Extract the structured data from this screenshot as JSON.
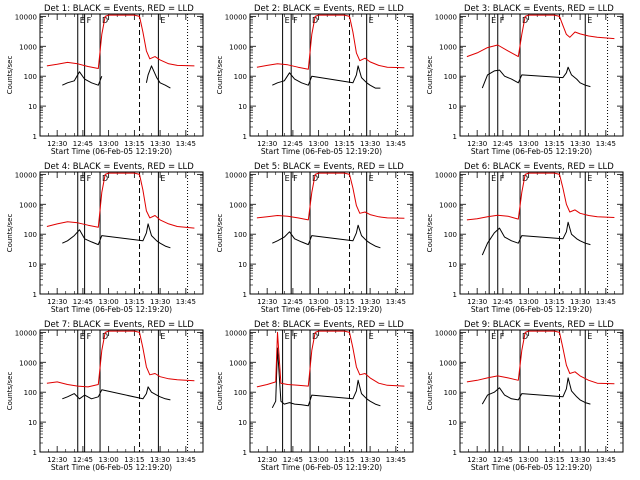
{
  "ylabel": "Counts/sec",
  "y_ticks": [
    "1",
    "10",
    "100",
    "1000",
    "10000"
  ],
  "x_ticks": [
    "12:30",
    "12:45",
    "13:00",
    "13:15",
    "13:30",
    "13:45"
  ],
  "start_time_label": "Start Time (06-Feb-05 12:19:20)",
  "colors": {
    "events": "#000000",
    "lld": "#e00000"
  },
  "chart_data": [
    {
      "type": "line",
      "title": "Det 1: BLACK = Events, RED = LLD",
      "xlabel": "Start Time (06-Feb-05 12:19:20)",
      "ylabel": "Counts/sec",
      "ylog": true,
      "ylim": [
        1,
        12000
      ],
      "flag_letters": [
        "E",
        "F",
        "D",
        "E"
      ],
      "solid_lines": [
        "12:42",
        "12:46",
        "12:55",
        "13:29"
      ],
      "dashed_lines": [
        "13:18"
      ],
      "dotted_lines": [
        "13:46"
      ],
      "series": [
        {
          "name": "BLACK",
          "x": [
            "12:33",
            "12:36",
            "12:40",
            "12:43",
            "12:46",
            "12:50",
            "12:54",
            "12:56",
            "13:18",
            "13:20",
            "13:22",
            "13:23",
            "13:25",
            "13:28",
            "13:30",
            "13:33",
            "13:36"
          ],
          "values": [
            50,
            60,
            70,
            140,
            80,
            60,
            50,
            100,
            null,
            null,
            60,
            110,
            220,
            90,
            60,
            50,
            40
          ]
        },
        {
          "name": "RED",
          "x": [
            "12:24",
            "12:30",
            "12:36",
            "12:42",
            "12:48",
            "12:54",
            "12:56",
            "12:58",
            "13:00",
            "13:10",
            "13:15",
            "13:18",
            "13:20",
            "13:22",
            "13:24",
            "13:27",
            "13:30",
            "13:35",
            "13:40",
            "13:50"
          ],
          "values": [
            220,
            250,
            290,
            260,
            210,
            180,
            2500,
            10000,
            11000,
            11000,
            11000,
            10000,
            3000,
            700,
            380,
            450,
            350,
            260,
            230,
            220
          ]
        }
      ]
    },
    {
      "type": "line",
      "title": "Det 2: BLACK = Events, RED = LLD",
      "xlabel": "Start Time (06-Feb-05 12:19:20)",
      "ylabel": "Counts/sec",
      "ylog": true,
      "ylim": [
        1,
        12000
      ],
      "flag_letters": [
        "E",
        "F",
        "D",
        "E"
      ],
      "solid_lines": [
        "12:39",
        "12:44",
        "12:55",
        "13:28"
      ],
      "dashed_lines": [
        "13:18"
      ],
      "dotted_lines": [
        "13:46"
      ],
      "series": [
        {
          "name": "BLACK",
          "x": [
            "12:33",
            "12:36",
            "12:40",
            "12:43",
            "12:46",
            "12:50",
            "12:54",
            "12:56",
            "13:20",
            "13:22",
            "13:23",
            "13:25",
            "13:28",
            "13:30",
            "13:33",
            "13:36"
          ],
          "values": [
            50,
            60,
            70,
            130,
            80,
            60,
            50,
            100,
            60,
            110,
            220,
            90,
            60,
            50,
            40,
            40
          ]
        },
        {
          "name": "RED",
          "x": [
            "12:24",
            "12:30",
            "12:36",
            "12:42",
            "12:48",
            "12:54",
            "12:56",
            "12:58",
            "13:00",
            "13:10",
            "13:15",
            "13:18",
            "13:20",
            "13:22",
            "13:24",
            "13:27",
            "13:30",
            "13:35",
            "13:40",
            "13:50"
          ],
          "values": [
            200,
            230,
            260,
            240,
            200,
            170,
            2500,
            10000,
            11000,
            11000,
            11000,
            10000,
            3000,
            600,
            330,
            400,
            300,
            230,
            200,
            190
          ]
        }
      ]
    },
    {
      "type": "line",
      "title": "Det 3: BLACK = Events, RED = LLD",
      "xlabel": "Start Time (06-Feb-05 12:19:20)",
      "ylabel": "Counts/sec",
      "ylog": true,
      "ylim": [
        1,
        12000
      ],
      "flag_letters": [
        "E",
        "F",
        "D",
        "E"
      ],
      "solid_lines": [
        "12:37",
        "12:42",
        "12:55",
        "13:33"
      ],
      "dashed_lines": [
        "13:18"
      ],
      "dotted_lines": [
        "13:46"
      ],
      "series": [
        {
          "name": "BLACK",
          "x": [
            "12:33",
            "12:36",
            "12:40",
            "12:43",
            "12:46",
            "12:50",
            "12:54",
            "12:56",
            "13:20",
            "13:22",
            "13:23",
            "13:25",
            "13:28",
            "13:30",
            "13:33",
            "13:36"
          ],
          "values": [
            40,
            110,
            150,
            160,
            100,
            80,
            60,
            110,
            90,
            130,
            200,
            110,
            80,
            60,
            50,
            45
          ]
        },
        {
          "name": "RED",
          "x": [
            "12:24",
            "12:30",
            "12:36",
            "12:42",
            "12:48",
            "12:54",
            "12:56",
            "12:58",
            "13:00",
            "13:10",
            "13:15",
            "13:18",
            "13:20",
            "13:22",
            "13:24",
            "13:27",
            "13:30",
            "13:35",
            "13:40",
            "13:50"
          ],
          "values": [
            450,
            600,
            900,
            1100,
            700,
            450,
            2500,
            10000,
            11000,
            11000,
            11000,
            10000,
            5000,
            2500,
            2000,
            3000,
            2600,
            2200,
            2000,
            1800
          ]
        }
      ]
    },
    {
      "type": "line",
      "title": "Det 4: BLACK = Events, RED = LLD",
      "xlabel": "Start Time (06-Feb-05 12:19:20)",
      "ylabel": "Counts/sec",
      "ylog": true,
      "ylim": [
        1,
        12000
      ],
      "flag_letters": [
        "E",
        "F",
        "D",
        "E"
      ],
      "solid_lines": [
        "12:42",
        "12:46",
        "12:55",
        "13:29"
      ],
      "dashed_lines": [
        "13:18"
      ],
      "dotted_lines": [
        "13:46"
      ],
      "series": [
        {
          "name": "BLACK",
          "x": [
            "12:33",
            "12:36",
            "12:40",
            "12:43",
            "12:46",
            "12:50",
            "12:54",
            "12:56",
            "13:20",
            "13:22",
            "13:23",
            "13:25",
            "13:28",
            "13:30",
            "13:33",
            "13:36"
          ],
          "values": [
            50,
            60,
            90,
            140,
            70,
            55,
            45,
            90,
            60,
            110,
            220,
            90,
            60,
            50,
            40,
            35
          ]
        },
        {
          "name": "RED",
          "x": [
            "12:24",
            "12:30",
            "12:36",
            "12:42",
            "12:48",
            "12:54",
            "12:56",
            "12:58",
            "13:00",
            "13:10",
            "13:15",
            "13:18",
            "13:20",
            "13:22",
            "13:24",
            "13:27",
            "13:30",
            "13:35",
            "13:40",
            "13:50"
          ],
          "values": [
            180,
            220,
            260,
            240,
            200,
            170,
            2500,
            10000,
            11000,
            11000,
            11000,
            10000,
            3000,
            600,
            350,
            420,
            300,
            220,
            180,
            160
          ]
        }
      ]
    },
    {
      "type": "line",
      "title": "Det 5: BLACK = Events, RED = LLD",
      "xlabel": "Start Time (06-Feb-05 12:19:20)",
      "ylabel": "Counts/sec",
      "ylog": true,
      "ylim": [
        1,
        12000
      ],
      "flag_letters": [
        "E",
        "F",
        "D",
        "E"
      ],
      "solid_lines": [
        "12:39",
        "12:44",
        "12:55",
        "13:28"
      ],
      "dashed_lines": [
        "13:18"
      ],
      "dotted_lines": [
        "13:46"
      ],
      "series": [
        {
          "name": "BLACK",
          "x": [
            "12:33",
            "12:36",
            "12:40",
            "12:43",
            "12:46",
            "12:50",
            "12:54",
            "12:56",
            "13:20",
            "13:22",
            "13:23",
            "13:25",
            "13:28",
            "13:30",
            "13:33",
            "13:36"
          ],
          "values": [
            50,
            60,
            80,
            120,
            70,
            55,
            45,
            90,
            60,
            110,
            200,
            90,
            60,
            50,
            40,
            35
          ]
        },
        {
          "name": "RED",
          "x": [
            "12:24",
            "12:30",
            "12:36",
            "12:42",
            "12:48",
            "12:54",
            "12:56",
            "12:58",
            "13:00",
            "13:10",
            "13:15",
            "13:18",
            "13:20",
            "13:22",
            "13:24",
            "13:27",
            "13:30",
            "13:35",
            "13:40",
            "13:50"
          ],
          "values": [
            350,
            380,
            420,
            400,
            350,
            300,
            2500,
            10000,
            11000,
            11000,
            11000,
            10000,
            3500,
            900,
            500,
            550,
            450,
            380,
            350,
            340
          ]
        }
      ]
    },
    {
      "type": "line",
      "title": "Det 6: BLACK = Events, RED = LLD",
      "xlabel": "Start Time (06-Feb-05 12:19:20)",
      "ylabel": "Counts/sec",
      "ylog": true,
      "ylim": [
        1,
        12000
      ],
      "flag_letters": [
        "E",
        "F",
        "D",
        "E"
      ],
      "solid_lines": [
        "12:37",
        "12:42",
        "12:55",
        "13:33"
      ],
      "dashed_lines": [
        "13:18"
      ],
      "dotted_lines": [
        "13:46"
      ],
      "series": [
        {
          "name": "BLACK",
          "x": [
            "12:33",
            "12:36",
            "12:40",
            "12:43",
            "12:46",
            "12:50",
            "12:54",
            "12:56",
            "13:20",
            "13:22",
            "13:23",
            "13:25",
            "13:28",
            "13:30",
            "13:33",
            "13:36"
          ],
          "values": [
            20,
            50,
            110,
            160,
            80,
            60,
            50,
            90,
            70,
            120,
            250,
            100,
            70,
            60,
            50,
            45
          ]
        },
        {
          "name": "RED",
          "x": [
            "12:24",
            "12:30",
            "12:36",
            "12:42",
            "12:48",
            "12:54",
            "12:56",
            "12:58",
            "13:00",
            "13:10",
            "13:15",
            "13:18",
            "13:20",
            "13:22",
            "13:24",
            "13:27",
            "13:30",
            "13:35",
            "13:40",
            "13:50"
          ],
          "values": [
            300,
            330,
            380,
            430,
            400,
            320,
            2500,
            10000,
            11000,
            11000,
            11000,
            10000,
            3500,
            1000,
            550,
            650,
            500,
            420,
            380,
            360
          ]
        }
      ]
    },
    {
      "type": "line",
      "title": "Det 7: BLACK = Events, RED = LLD",
      "xlabel": "Start Time (06-Feb-05 12:19:20)",
      "ylabel": "Counts/sec",
      "ylog": true,
      "ylim": [
        1,
        12000
      ],
      "flag_letters": [
        "E",
        "F",
        "D",
        "E"
      ],
      "solid_lines": [
        "12:42",
        "12:46",
        "12:55",
        "13:29"
      ],
      "dashed_lines": [
        "13:18"
      ],
      "dotted_lines": [
        "13:46"
      ],
      "series": [
        {
          "name": "BLACK",
          "x": [
            "12:33",
            "12:36",
            "12:40",
            "12:43",
            "12:46",
            "12:50",
            "12:54",
            "12:56",
            "13:20",
            "13:22",
            "13:23",
            "13:25",
            "13:28",
            "13:30",
            "13:33",
            "13:36"
          ],
          "values": [
            60,
            70,
            90,
            60,
            80,
            60,
            70,
            120,
            60,
            90,
            150,
            100,
            80,
            70,
            60,
            55
          ]
        },
        {
          "name": "RED",
          "x": [
            "12:24",
            "12:30",
            "12:36",
            "12:42",
            "12:48",
            "12:54",
            "12:56",
            "12:58",
            "13:00",
            "13:10",
            "13:15",
            "13:18",
            "13:20",
            "13:22",
            "13:24",
            "13:27",
            "13:30",
            "13:35",
            "13:40",
            "13:50"
          ],
          "values": [
            200,
            220,
            180,
            160,
            150,
            180,
            2500,
            10000,
            11000,
            11000,
            11000,
            10000,
            3000,
            700,
            380,
            420,
            330,
            280,
            260,
            240
          ]
        }
      ]
    },
    {
      "type": "line",
      "title": "Det 8: BLACK = Events, RED = LLD",
      "xlabel": "Start Time (06-Feb-05 12:19:20)",
      "ylabel": "Counts/sec",
      "ylog": true,
      "ylim": [
        1,
        12000
      ],
      "flag_letters": [
        "E",
        "F",
        "D",
        "E"
      ],
      "solid_lines": [
        "12:39",
        "12:44",
        "12:55",
        "13:28"
      ],
      "dashed_lines": [
        "13:18"
      ],
      "dotted_lines": [
        "13:46"
      ],
      "series": [
        {
          "name": "BLACK",
          "x": [
            "12:33",
            "12:35",
            "12:36",
            "12:38",
            "12:40",
            "12:43",
            "12:46",
            "12:50",
            "12:54",
            "12:56",
            "13:20",
            "13:22",
            "13:23",
            "13:25",
            "13:28",
            "13:30",
            "13:33",
            "13:36"
          ],
          "values": [
            30,
            50,
            3000,
            50,
            40,
            45,
            40,
            38,
            35,
            80,
            60,
            110,
            250,
            90,
            60,
            50,
            40,
            35
          ]
        },
        {
          "name": "RED",
          "x": [
            "12:24",
            "12:30",
            "12:35",
            "12:36",
            "12:38",
            "12:42",
            "12:48",
            "12:54",
            "12:56",
            "12:58",
            "13:00",
            "13:10",
            "13:15",
            "13:18",
            "13:20",
            "13:22",
            "13:24",
            "13:27",
            "13:30",
            "13:35",
            "13:40",
            "13:50"
          ],
          "values": [
            150,
            180,
            220,
            10000,
            200,
            180,
            170,
            160,
            2500,
            10000,
            11000,
            11000,
            11000,
            10000,
            3000,
            700,
            380,
            420,
            300,
            200,
            170,
            160
          ]
        }
      ]
    },
    {
      "type": "line",
      "title": "Det 9: BLACK = Events, RED = LLD",
      "xlabel": "Start Time (06-Feb-05 12:19:20)",
      "ylabel": "Counts/sec",
      "ylog": true,
      "ylim": [
        1,
        12000
      ],
      "flag_letters": [
        "E",
        "F",
        "D",
        "E"
      ],
      "solid_lines": [
        "12:37",
        "12:42",
        "12:55",
        "13:33"
      ],
      "dashed_lines": [
        "13:18"
      ],
      "dotted_lines": [
        "13:46"
      ],
      "series": [
        {
          "name": "BLACK",
          "x": [
            "12:33",
            "12:36",
            "12:40",
            "12:43",
            "12:46",
            "12:50",
            "12:54",
            "12:56",
            "13:20",
            "13:22",
            "13:23",
            "13:25",
            "13:28",
            "13:30",
            "13:33",
            "13:36"
          ],
          "values": [
            40,
            80,
            100,
            140,
            80,
            60,
            55,
            90,
            70,
            130,
            300,
            110,
            70,
            55,
            45,
            40
          ]
        },
        {
          "name": "RED",
          "x": [
            "12:24",
            "12:30",
            "12:36",
            "12:42",
            "12:48",
            "12:54",
            "12:56",
            "12:58",
            "13:00",
            "13:10",
            "13:15",
            "13:18",
            "13:20",
            "13:22",
            "13:24",
            "13:27",
            "13:30",
            "13:35",
            "13:40",
            "13:50"
          ],
          "values": [
            220,
            250,
            300,
            350,
            300,
            250,
            2500,
            10000,
            11000,
            11000,
            11000,
            10000,
            3000,
            800,
            420,
            480,
            350,
            250,
            200,
            190
          ]
        }
      ]
    }
  ]
}
